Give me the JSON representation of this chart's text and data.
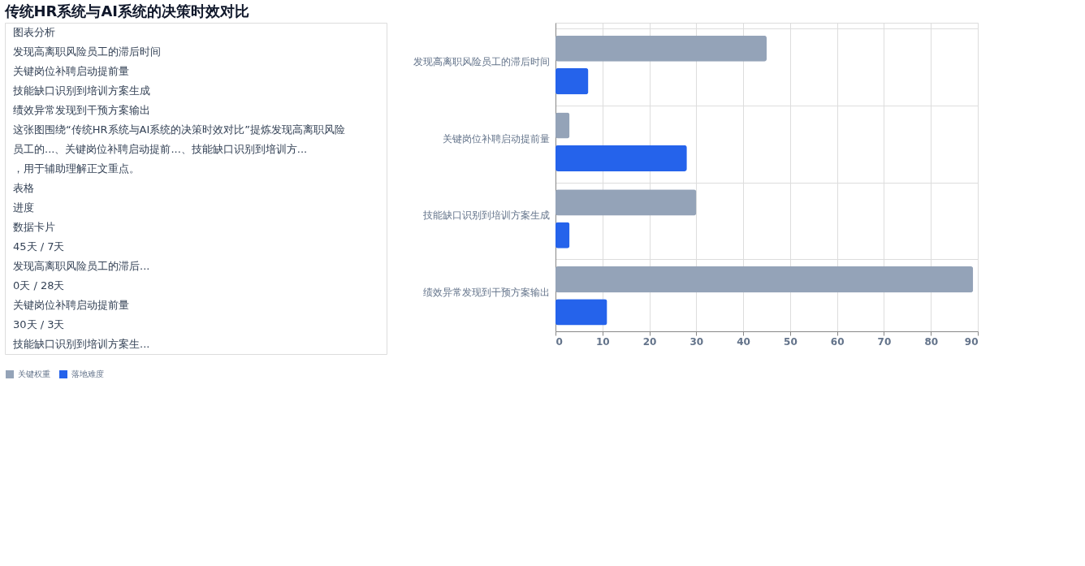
{
  "chart_data": {
    "type": "bar",
    "orientation": "horizontal",
    "title": "传统HR系统与AI系统的决策时效对比",
    "categories": [
      "发现高离职风险员工的滞后时间",
      "关键岗位补聘启动提前量",
      "技能缺口识别到培训方案生成",
      "绩效异常发现到干预方案输出"
    ],
    "series": [
      {
        "name": "关键权重",
        "color": "#94a3b8",
        "values": [
          45,
          3,
          30,
          89
        ]
      },
      {
        "name": "落地难度",
        "color": "#2563eb",
        "values": [
          7,
          28,
          3,
          11
        ]
      }
    ],
    "xlim": [
      0,
      90
    ],
    "xticks": [
      0,
      10,
      20,
      30,
      40,
      50,
      60,
      70,
      80,
      90
    ],
    "grid": true,
    "legend": "bottom",
    "annotations": [
      "图表分析",
      "发现高离职风险员工的滞后时间",
      "关键岗位补聘启动提前量",
      "技能缺口识别到培训方案生成",
      "绩效异常发现到干预方案输出",
      "这张图围绕“传统HR系统与AI系统的决策时效对比”提炼发现高离职风险员工的...、关键岗位补聘启动提前...、技能缺口识别到培训方...，用于辅助理解正文重点。",
      "表格",
      "进度",
      "数据卡片",
      "45天 / 7天",
      "发现高离职风险员工的滞后...",
      "0天 / 28天",
      "关键岗位补聘启动提前量",
      "30天 / 3天",
      "技能缺口识别到培训方案生..."
    ]
  }
}
